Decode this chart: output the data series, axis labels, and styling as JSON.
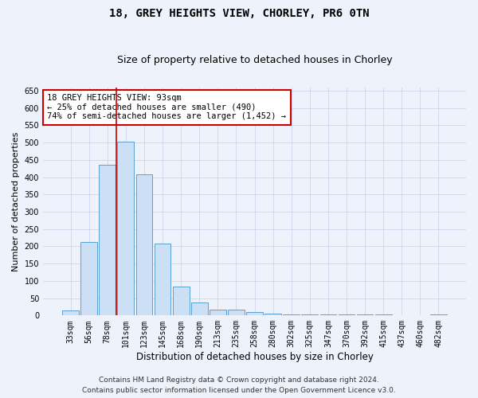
{
  "title1": "18, GREY HEIGHTS VIEW, CHORLEY, PR6 0TN",
  "title2": "Size of property relative to detached houses in Chorley",
  "xlabel": "Distribution of detached houses by size in Chorley",
  "ylabel": "Number of detached properties",
  "categories": [
    "33sqm",
    "56sqm",
    "78sqm",
    "101sqm",
    "123sqm",
    "145sqm",
    "168sqm",
    "190sqm",
    "213sqm",
    "235sqm",
    "258sqm",
    "280sqm",
    "302sqm",
    "325sqm",
    "347sqm",
    "370sqm",
    "392sqm",
    "415sqm",
    "437sqm",
    "460sqm",
    "482sqm"
  ],
  "values": [
    15,
    213,
    435,
    503,
    408,
    207,
    84,
    38,
    18,
    17,
    11,
    5,
    4,
    4,
    4,
    4,
    4,
    4,
    1,
    1,
    4
  ],
  "bar_color": "#cce0f5",
  "bar_edge_color": "#5a9fd4",
  "vline_x": 2.5,
  "vline_color": "#cc0000",
  "annotation_line1": "18 GREY HEIGHTS VIEW: 93sqm",
  "annotation_line2": "← 25% of detached houses are smaller (490)",
  "annotation_line3": "74% of semi-detached houses are larger (1,452) →",
  "annotation_box_color": "#ffffff",
  "annotation_box_edge": "#cc0000",
  "ylim": [
    0,
    660
  ],
  "yticks": [
    0,
    50,
    100,
    150,
    200,
    250,
    300,
    350,
    400,
    450,
    500,
    550,
    600,
    650
  ],
  "footer1": "Contains HM Land Registry data © Crown copyright and database right 2024.",
  "footer2": "Contains public sector information licensed under the Open Government Licence v3.0.",
  "bg_color": "#eef2fb",
  "plot_bg_color": "#eef2fb",
  "title1_fontsize": 10,
  "title2_fontsize": 9,
  "xlabel_fontsize": 8.5,
  "ylabel_fontsize": 8,
  "tick_fontsize": 7,
  "annotation_fontsize": 7.5,
  "footer_fontsize": 6.5
}
